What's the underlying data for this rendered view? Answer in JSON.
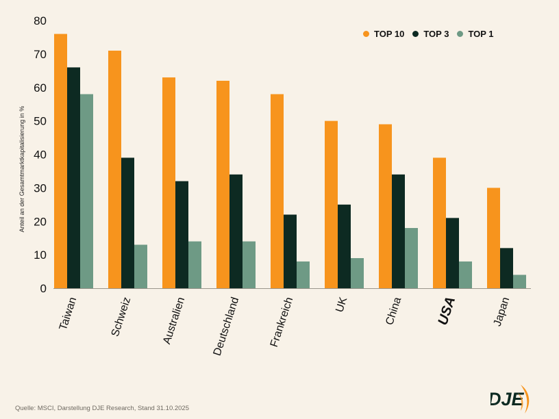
{
  "chart_data": {
    "type": "bar",
    "title": "",
    "xlabel": "",
    "ylabel": "Anteil an der Gesamtmarktkapitalisierung in %",
    "ylim": [
      0,
      80
    ],
    "yticks": [
      0,
      10,
      20,
      30,
      40,
      50,
      60,
      70,
      80
    ],
    "grid": false,
    "legend_position": "top-right",
    "categories": [
      "Taiwan",
      "Schweiz",
      "Australien",
      "Deutschland",
      "Frankreich",
      "UK",
      "China",
      "USA",
      "Japan"
    ],
    "highlighted_category": "USA",
    "series": [
      {
        "name": "TOP 10",
        "color": "#f7941d",
        "values": [
          76,
          71,
          63,
          62,
          58,
          50,
          49,
          39,
          30
        ]
      },
      {
        "name": "TOP 3",
        "color": "#0d2a22",
        "values": [
          66,
          39,
          32,
          34,
          22,
          25,
          34,
          21,
          12
        ]
      },
      {
        "name": "TOP 1",
        "color": "#6e9a85",
        "values": [
          58,
          13,
          14,
          14,
          8,
          9,
          18,
          8,
          4
        ]
      }
    ]
  },
  "source": "Quelle: MSCI, Darstellung DJE Research, Stand 31.10.2025",
  "logo": {
    "text": "DJE",
    "color": "#f7941d"
  }
}
